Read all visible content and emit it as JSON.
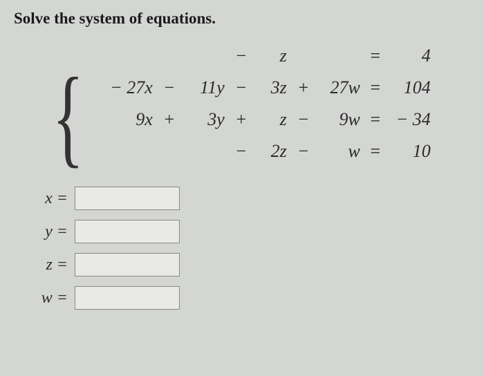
{
  "title": "Solve the system of equations.",
  "rows": [
    {
      "x": "",
      "op1": "",
      "y": "",
      "op2": "−",
      "z": "z",
      "op3": "",
      "w": "",
      "eq": "=",
      "rhs": "4"
    },
    {
      "x": "− 27x",
      "op1": "−",
      "y": "11y",
      "op2": "−",
      "z": "3z",
      "op3": "+",
      "w": "27w",
      "eq": "=",
      "rhs": "104"
    },
    {
      "x": "9x",
      "op1": "+",
      "y": "3y",
      "op2": "+",
      "z": "z",
      "op3": "−",
      "w": "9w",
      "eq": "=",
      "rhs": "− 34"
    },
    {
      "x": "",
      "op1": "",
      "y": "",
      "op2": "−",
      "z": "2z",
      "op3": "−",
      "w": "w",
      "eq": "=",
      "rhs": "10"
    }
  ],
  "answers": {
    "x": {
      "label": "x =",
      "value": ""
    },
    "y": {
      "label": "y =",
      "value": ""
    },
    "z": {
      "label": "z =",
      "value": ""
    },
    "w": {
      "label": "w =",
      "value": ""
    }
  }
}
